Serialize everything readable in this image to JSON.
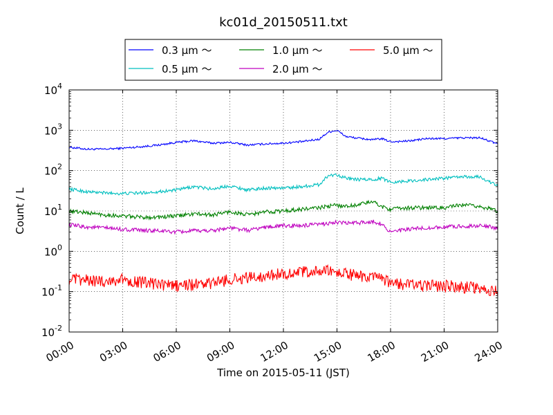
{
  "chart_data": {
    "type": "line",
    "title": "kc01d_20150511.txt",
    "xlabel": "Time on 2015-05-11 (JST)",
    "ylabel": "Count / L",
    "yscale": "log",
    "ylim": [
      0.01,
      10000
    ],
    "xlim": [
      "00:00",
      "24:00"
    ],
    "grid": true,
    "legend": "top-center",
    "x_ticks": [
      "00:00",
      "03:00",
      "06:00",
      "09:00",
      "12:00",
      "15:00",
      "18:00",
      "21:00",
      "24:00"
    ],
    "y_ticks": [
      {
        "base": "10",
        "exp": "-2"
      },
      {
        "base": "10",
        "exp": "-1"
      },
      {
        "base": "10",
        "exp": "0"
      },
      {
        "base": "10",
        "exp": "1"
      },
      {
        "base": "10",
        "exp": "2"
      },
      {
        "base": "10",
        "exp": "3"
      },
      {
        "base": "10",
        "exp": "4"
      }
    ],
    "x_hours": [
      0,
      1,
      2,
      3,
      4,
      5,
      6,
      7,
      8,
      9,
      10,
      11,
      12,
      13,
      14,
      14.5,
      15,
      15.5,
      16,
      17,
      17.5,
      18,
      19,
      20,
      21,
      22,
      23,
      24
    ],
    "series": [
      {
        "name": "0.3 μm ～",
        "color": "#0000ff",
        "values": [
          380,
          340,
          340,
          360,
          390,
          430,
          500,
          550,
          480,
          500,
          430,
          460,
          480,
          520,
          600,
          900,
          1000,
          700,
          650,
          580,
          620,
          520,
          540,
          620,
          620,
          650,
          650,
          460
        ]
      },
      {
        "name": "0.5 μm ～",
        "color": "#00bfbf",
        "values": [
          35,
          30,
          28,
          27,
          28,
          30,
          33,
          40,
          35,
          42,
          33,
          37,
          37,
          40,
          45,
          75,
          80,
          65,
          60,
          60,
          65,
          52,
          55,
          60,
          65,
          70,
          70,
          42
        ]
      },
      {
        "name": "1.0 μm ～",
        "color": "#008000",
        "values": [
          10,
          9,
          8,
          7.5,
          7,
          7,
          7.5,
          8.5,
          8,
          9.5,
          8,
          9.5,
          10,
          11,
          12,
          13,
          14,
          13,
          14,
          17,
          13,
          11,
          12,
          12,
          12,
          14,
          13,
          10
        ]
      },
      {
        "name": "2.0 μm ～",
        "color": "#bf00bf",
        "values": [
          4.5,
          4,
          3.8,
          3.5,
          3.3,
          3.2,
          3,
          3.2,
          3.3,
          3.8,
          3.3,
          4,
          4.3,
          4.3,
          4.6,
          5,
          5.2,
          5,
          5,
          5.5,
          4.8,
          3,
          3.5,
          3.8,
          4,
          4.2,
          4.3,
          3.8
        ]
      },
      {
        "name": "5.0 μm ～",
        "color": "#ff0000",
        "values": [
          0.2,
          0.19,
          0.18,
          0.2,
          0.17,
          0.15,
          0.14,
          0.15,
          0.16,
          0.2,
          0.22,
          0.25,
          0.28,
          0.3,
          0.32,
          0.32,
          0.3,
          0.28,
          0.25,
          0.22,
          0.2,
          0.16,
          0.15,
          0.14,
          0.14,
          0.13,
          0.12,
          0.1
        ]
      }
    ]
  }
}
